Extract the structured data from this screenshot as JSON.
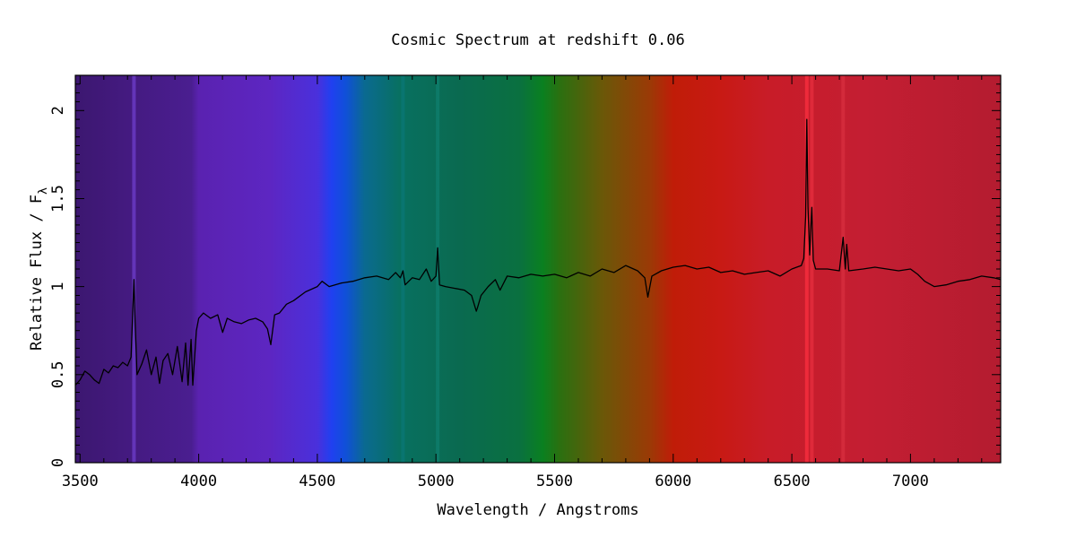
{
  "chart_data": {
    "type": "line",
    "title": "Cosmic Spectrum at redshift 0.06",
    "xlabel": "Wavelength / Angstroms",
    "ylabel": "Relative Flux / F",
    "ylabel_subscript": "λ",
    "xlim": [
      3480,
      7380
    ],
    "ylim": [
      0,
      2.2
    ],
    "xticks": [
      3500,
      4000,
      4500,
      5000,
      5500,
      6000,
      6500,
      7000
    ],
    "yticks": [
      0,
      0.5,
      1,
      1.5,
      2
    ],
    "xtick_labels": [
      "3500",
      "4000",
      "4500",
      "5000",
      "5500",
      "6000",
      "6500",
      "7000"
    ],
    "ytick_labels": [
      "0",
      "0.5",
      "1",
      "1.5",
      "2"
    ],
    "background_gradient": [
      [
        3480,
        "#3c1770"
      ],
      [
        3700,
        "#441a80"
      ],
      [
        3970,
        "#4a1e90"
      ],
      [
        4000,
        "#5a22b0"
      ],
      [
        4300,
        "#5d26c2"
      ],
      [
        4500,
        "#4a30dc"
      ],
      [
        4560,
        "#2040f0"
      ],
      [
        4620,
        "#1050d8"
      ],
      [
        4700,
        "#0a6a90"
      ],
      [
        4850,
        "#087060"
      ],
      [
        5100,
        "#0a6a50"
      ],
      [
        5350,
        "#0a7040"
      ],
      [
        5450,
        "#0a8020"
      ],
      [
        5520,
        "#2a7010"
      ],
      [
        5700,
        "#6a5808"
      ],
      [
        5900,
        "#9a3a06"
      ],
      [
        6000,
        "#c01c08"
      ],
      [
        6200,
        "#c81a14"
      ],
      [
        6400,
        "#c81c28"
      ],
      [
        6800,
        "#c41e32"
      ],
      [
        7380,
        "#b41c30"
      ]
    ],
    "emission_bands": [
      [
        3727,
        "#7040d0"
      ],
      [
        4861,
        "#0a7878"
      ],
      [
        5007,
        "#108070"
      ],
      [
        6563,
        "#ff3040"
      ],
      [
        6584,
        "#e83040"
      ],
      [
        6716,
        "#d83040"
      ]
    ],
    "series": [
      {
        "name": "spectrum",
        "color": "#000000",
        "x": [
          3480,
          3500,
          3520,
          3540,
          3560,
          3580,
          3600,
          3620,
          3640,
          3660,
          3680,
          3700,
          3715,
          3722,
          3727,
          3732,
          3740,
          3760,
          3780,
          3800,
          3820,
          3835,
          3850,
          3870,
          3890,
          3910,
          3930,
          3945,
          3955,
          3968,
          3975,
          3990,
          4000,
          4020,
          4050,
          4080,
          4101,
          4120,
          4150,
          4180,
          4210,
          4240,
          4270,
          4290,
          4304,
          4320,
          4340,
          4370,
          4400,
          4450,
          4500,
          4520,
          4550,
          4600,
          4650,
          4700,
          4750,
          4800,
          4830,
          4850,
          4861,
          4870,
          4900,
          4930,
          4959,
          4980,
          5000,
          5007,
          5015,
          5040,
          5080,
          5120,
          5150,
          5170,
          5175,
          5190,
          5220,
          5250,
          5270,
          5300,
          5350,
          5400,
          5450,
          5500,
          5550,
          5600,
          5650,
          5700,
          5750,
          5800,
          5850,
          5880,
          5893,
          5910,
          5950,
          6000,
          6050,
          6100,
          6150,
          6200,
          6250,
          6300,
          6350,
          6400,
          6450,
          6500,
          6540,
          6550,
          6558,
          6563,
          6568,
          6575,
          6580,
          6584,
          6590,
          6600,
          6650,
          6700,
          6716,
          6725,
          6731,
          6740,
          6800,
          6850,
          6900,
          6950,
          7000,
          7030,
          7060,
          7100,
          7150,
          7200,
          7250,
          7300,
          7350,
          7380
        ],
        "y": [
          0.44,
          0.47,
          0.52,
          0.5,
          0.47,
          0.45,
          0.53,
          0.51,
          0.55,
          0.54,
          0.57,
          0.55,
          0.6,
          0.85,
          1.04,
          0.8,
          0.5,
          0.56,
          0.64,
          0.5,
          0.6,
          0.45,
          0.58,
          0.62,
          0.5,
          0.66,
          0.46,
          0.68,
          0.44,
          0.7,
          0.44,
          0.75,
          0.82,
          0.85,
          0.82,
          0.84,
          0.74,
          0.82,
          0.8,
          0.79,
          0.81,
          0.82,
          0.8,
          0.76,
          0.67,
          0.84,
          0.85,
          0.9,
          0.92,
          0.97,
          1.0,
          1.03,
          1.0,
          1.02,
          1.03,
          1.05,
          1.06,
          1.04,
          1.08,
          1.05,
          1.09,
          1.01,
          1.05,
          1.04,
          1.1,
          1.03,
          1.06,
          1.22,
          1.01,
          1.0,
          0.99,
          0.98,
          0.95,
          0.86,
          0.88,
          0.95,
          1.0,
          1.04,
          0.98,
          1.06,
          1.05,
          1.07,
          1.06,
          1.07,
          1.05,
          1.08,
          1.06,
          1.1,
          1.08,
          1.12,
          1.09,
          1.05,
          0.94,
          1.06,
          1.09,
          1.11,
          1.12,
          1.1,
          1.11,
          1.08,
          1.09,
          1.07,
          1.08,
          1.09,
          1.06,
          1.1,
          1.12,
          1.16,
          1.4,
          1.95,
          1.45,
          1.18,
          1.34,
          1.45,
          1.15,
          1.1,
          1.1,
          1.09,
          1.28,
          1.1,
          1.24,
          1.09,
          1.1,
          1.11,
          1.1,
          1.09,
          1.1,
          1.07,
          1.03,
          1.0,
          1.01,
          1.03,
          1.04,
          1.06,
          1.05,
          1.04
        ]
      }
    ]
  }
}
